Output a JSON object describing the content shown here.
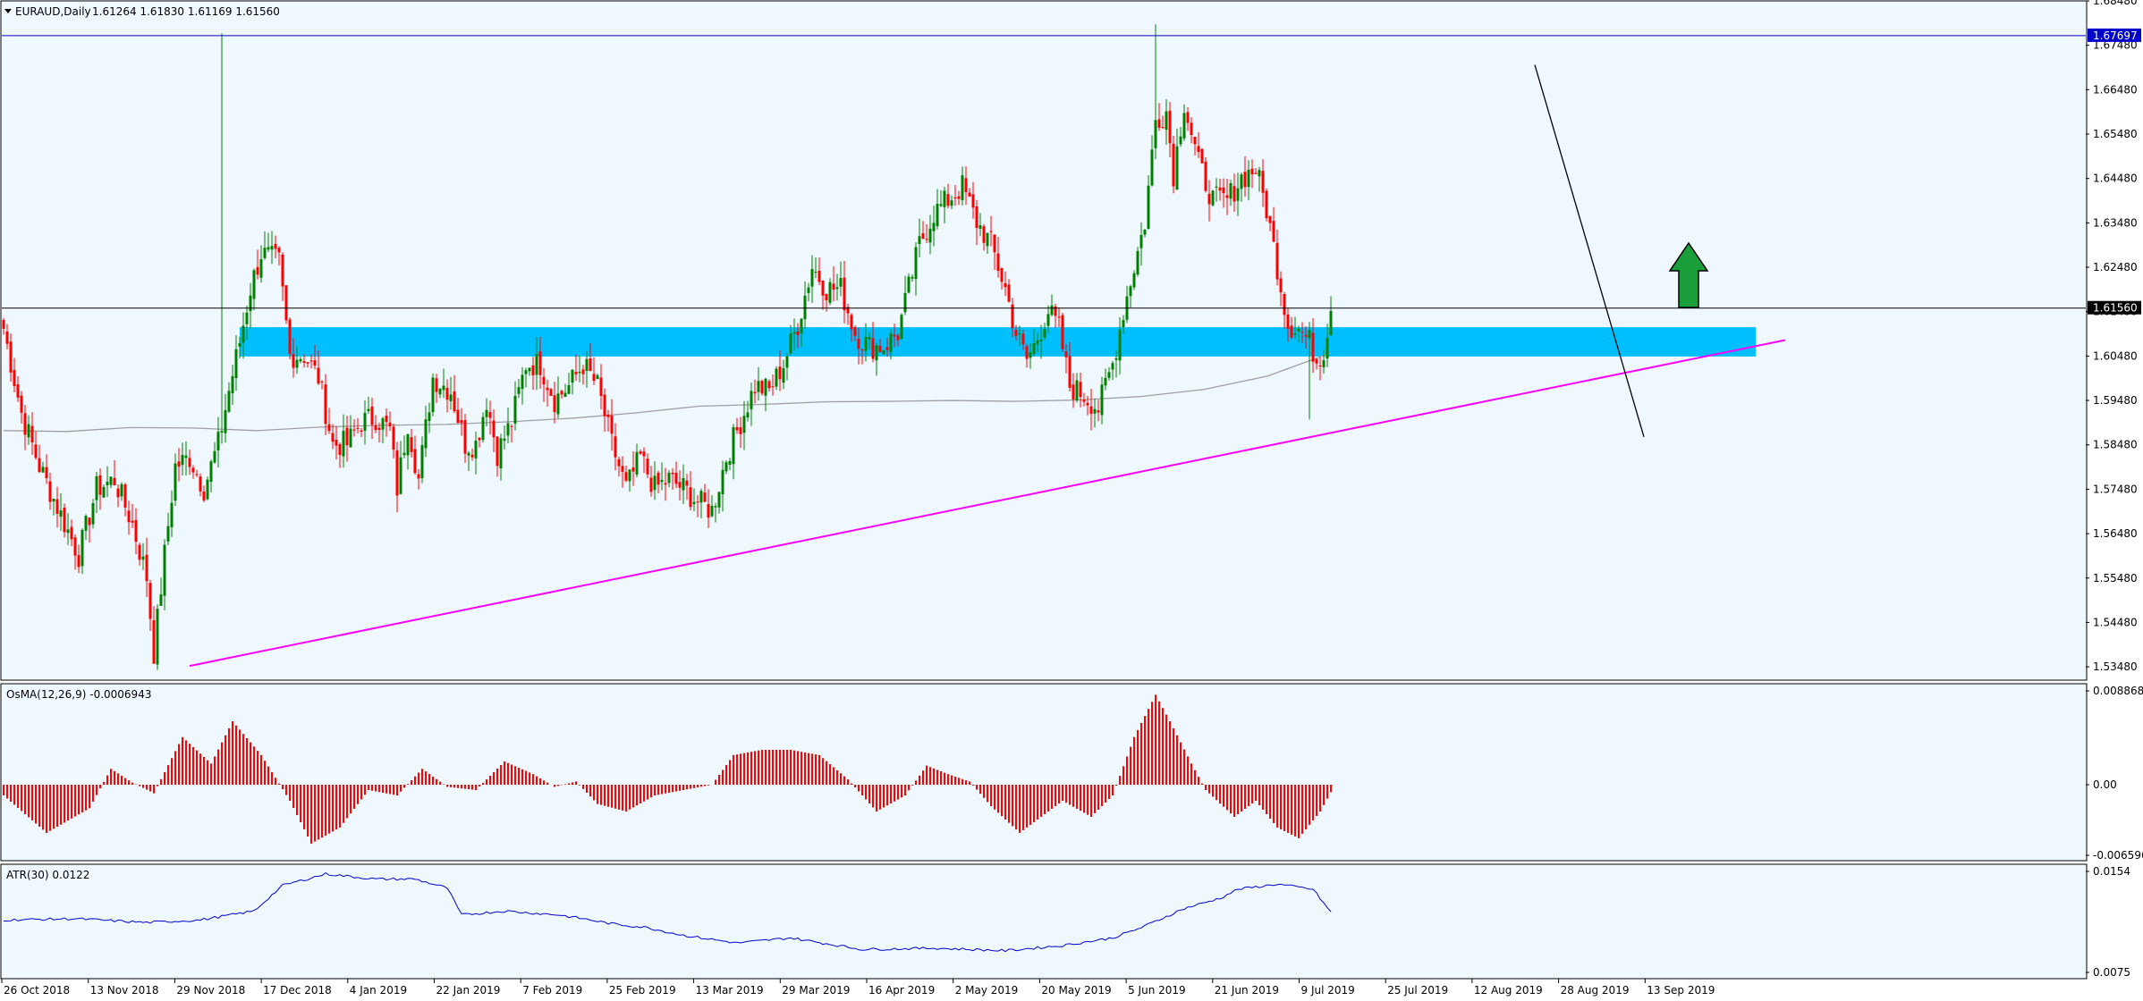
{
  "window": {
    "symbol_title": "EURAUD,Daily",
    "ohlc_text": "1.61264 1.61830 1.61169 1.61560"
  },
  "colors": {
    "background": "#f0f8ff",
    "bull_candle": "#008000",
    "bear_candle": "#ff0000",
    "osma_bar": "#ff0000",
    "atr_line": "#0000cc",
    "ma_line": "#a0a0a0",
    "trendline": "#ff00ff",
    "downtrend_line": "#000000",
    "resistance_line": "#0000cc",
    "support_zone": "#00bfff",
    "arrow": "#1a9e3a"
  },
  "price_axis": {
    "ticks": [
      "1.68480",
      "1.67480",
      "1.66480",
      "1.65480",
      "1.64480",
      "1.63480",
      "1.62480",
      "1.61480",
      "1.60480",
      "1.59480",
      "1.58480",
      "1.57480",
      "1.56480",
      "1.55480",
      "1.54480",
      "1.53480"
    ],
    "current_price_label": "1.61560",
    "resistance_label": "1.67697"
  },
  "osma_panel": {
    "label": "OsMA(12,26,9) -0.0006943",
    "ticks": [
      "0.0088685",
      "0.00",
      "-0.0065962"
    ]
  },
  "atr_panel": {
    "label": "ATR(30) 0.0122",
    "ticks": [
      "0.0154",
      "0.0075"
    ]
  },
  "time_axis": {
    "labels": [
      "26 Oct 2018",
      "13 Nov 2018",
      "29 Nov 2018",
      "17 Dec 2018",
      "4 Jan 2019",
      "22 Jan 2019",
      "7 Feb 2019",
      "25 Feb 2019",
      "13 Mar 2019",
      "29 Mar 2019",
      "16 Apr 2019",
      "2 May 2019",
      "20 May 2019",
      "5 Jun 2019",
      "21 Jun 2019",
      "9 Jul 2019",
      "25 Jul 2019",
      "12 Aug 2019",
      "28 Aug 2019",
      "13 Sep 2019"
    ]
  },
  "chart_data": [
    {
      "type": "candlestick",
      "title": "EURAUD,Daily",
      "x_start": "26 Oct 2018",
      "x_end": "18 Sep 2019",
      "ylim": [
        1.5318,
        1.6848
      ],
      "price_path": [
        [
          0,
          1.611
        ],
        [
          5,
          1.592
        ],
        [
          10,
          1.58
        ],
        [
          16,
          1.569
        ],
        [
          21,
          1.56
        ],
        [
          26,
          1.575
        ],
        [
          31,
          1.577
        ],
        [
          36,
          1.567
        ],
        [
          40,
          1.555
        ],
        [
          42,
          1.538
        ],
        [
          45,
          1.56
        ],
        [
          48,
          1.58
        ],
        [
          52,
          1.582
        ],
        [
          56,
          1.575
        ],
        [
          60,
          1.585
        ],
        [
          63,
          1.597
        ],
        [
          66,
          1.608
        ],
        [
          69,
          1.62
        ],
        [
          72,
          1.628
        ],
        [
          77,
          1.626
        ],
        [
          80,
          1.605
        ],
        [
          84,
          1.605
        ],
        [
          88,
          1.6
        ],
        [
          92,
          1.585
        ],
        [
          96,
          1.585
        ],
        [
          100,
          1.59
        ],
        [
          104,
          1.591
        ],
        [
          108,
          1.588
        ],
        [
          110,
          1.575
        ],
        [
          113,
          1.59
        ],
        [
          116,
          1.577
        ],
        [
          120,
          1.6
        ],
        [
          125,
          1.597
        ],
        [
          129,
          1.585
        ],
        [
          132,
          1.585
        ],
        [
          135,
          1.595
        ],
        [
          138,
          1.583
        ],
        [
          142,
          1.59
        ],
        [
          146,
          1.603
        ],
        [
          150,
          1.603
        ],
        [
          154,
          1.595
        ],
        [
          158,
          1.598
        ],
        [
          162,
          1.603
        ],
        [
          166,
          1.598
        ],
        [
          170,
          1.585
        ],
        [
          174,
          1.575
        ],
        [
          178,
          1.582
        ],
        [
          182,
          1.575
        ],
        [
          186,
          1.577
        ],
        [
          190,
          1.575
        ],
        [
          194,
          1.572
        ],
        [
          198,
          1.57
        ],
        [
          202,
          1.582
        ],
        [
          206,
          1.59
        ],
        [
          210,
          1.598
        ],
        [
          214,
          1.597
        ],
        [
          218,
          1.603
        ],
        [
          222,
          1.612
        ],
        [
          226,
          1.625
        ],
        [
          230,
          1.62
        ],
        [
          234,
          1.62
        ],
        [
          238,
          1.61
        ],
        [
          242,
          1.607
        ],
        [
          246,
          1.607
        ],
        [
          250,
          1.61
        ],
        [
          253,
          1.62
        ],
        [
          256,
          1.63
        ],
        [
          260,
          1.637
        ],
        [
          264,
          1.64
        ],
        [
          268,
          1.643
        ],
        [
          272,
          1.635
        ],
        [
          276,
          1.63
        ],
        [
          280,
          1.62
        ],
        [
          283,
          1.61
        ],
        [
          286,
          1.604
        ],
        [
          288,
          1.607
        ],
        [
          292,
          1.615
        ],
        [
          295,
          1.611
        ],
        [
          298,
          1.598
        ],
        [
          302,
          1.596
        ],
        [
          306,
          1.593
        ],
        [
          310,
          1.603
        ],
        [
          313,
          1.615
        ],
        [
          316,
          1.625
        ],
        [
          319,
          1.635
        ],
        [
          322,
          1.658
        ],
        [
          325,
          1.66
        ],
        [
          327,
          1.646
        ],
        [
          330,
          1.662
        ],
        [
          334,
          1.648
        ],
        [
          338,
          1.64
        ],
        [
          342,
          1.64
        ],
        [
          346,
          1.645
        ],
        [
          350,
          1.647
        ],
        [
          353,
          1.638
        ],
        [
          356,
          1.625
        ],
        [
          359,
          1.612
        ],
        [
          362,
          1.611
        ],
        [
          365,
          1.608
        ],
        [
          367,
          1.604
        ],
        [
          369,
          1.606
        ],
        [
          371,
          1.616
        ]
      ]
    },
    {
      "type": "line",
      "title": "",
      "values": [
        1.588,
        1.5878,
        1.5887,
        1.5886,
        1.588,
        1.5888,
        1.5892,
        1.5894,
        1.59,
        1.5908,
        1.592,
        1.5935,
        1.5939,
        1.5945,
        1.5946,
        1.5948,
        1.5946,
        1.5949,
        1.5957,
        1.5973,
        1.6003,
        1.6055
      ]
    },
    {
      "type": "bar",
      "title": "OsMA(12,26,9) -0.0006943",
      "ylim": [
        -0.0065962,
        0.0088685
      ],
      "osma_path": [
        [
          0,
          -0.001
        ],
        [
          12,
          -0.0045
        ],
        [
          24,
          -0.0022
        ],
        [
          30,
          0.0015
        ],
        [
          36,
          0.0002
        ],
        [
          42,
          -0.0008
        ],
        [
          50,
          0.0045
        ],
        [
          58,
          0.002
        ],
        [
          64,
          0.006
        ],
        [
          72,
          0.0028
        ],
        [
          80,
          -0.0015
        ],
        [
          86,
          -0.0055
        ],
        [
          94,
          -0.004
        ],
        [
          102,
          -0.0005
        ],
        [
          110,
          -0.001
        ],
        [
          117,
          0.0015
        ],
        [
          124,
          -0.0002
        ],
        [
          132,
          -0.0005
        ],
        [
          140,
          0.0022
        ],
        [
          148,
          0.001
        ],
        [
          154,
          -0.0002
        ],
        [
          160,
          0.0003
        ],
        [
          166,
          -0.0018
        ],
        [
          174,
          -0.0025
        ],
        [
          182,
          -0.001
        ],
        [
          190,
          -0.0005
        ],
        [
          198,
          0.0
        ],
        [
          204,
          0.0028
        ],
        [
          212,
          0.0033
        ],
        [
          220,
          0.0033
        ],
        [
          228,
          0.0028
        ],
        [
          236,
          0.0005
        ],
        [
          244,
          -0.0025
        ],
        [
          252,
          -0.001
        ],
        [
          258,
          0.0018
        ],
        [
          264,
          0.001
        ],
        [
          270,
          0.0003
        ],
        [
          276,
          -0.002
        ],
        [
          284,
          -0.0045
        ],
        [
          290,
          -0.003
        ],
        [
          296,
          -0.0015
        ],
        [
          304,
          -0.003
        ],
        [
          310,
          -0.001
        ],
        [
          316,
          0.0045
        ],
        [
          322,
          0.0085
        ],
        [
          326,
          0.006
        ],
        [
          332,
          0.002
        ],
        [
          336,
          -0.0005
        ],
        [
          344,
          -0.003
        ],
        [
          350,
          -0.0015
        ],
        [
          356,
          -0.004
        ],
        [
          362,
          -0.005
        ],
        [
          368,
          -0.0025
        ],
        [
          371,
          -0.0007
        ]
      ]
    },
    {
      "type": "line",
      "title": "ATR(30) 0.0122",
      "ylim": [
        0.0075,
        0.0154
      ],
      "atr_path": [
        [
          0,
          0.0116
        ],
        [
          20,
          0.0117
        ],
        [
          40,
          0.0114
        ],
        [
          55,
          0.0116
        ],
        [
          70,
          0.0123
        ],
        [
          78,
          0.0143
        ],
        [
          90,
          0.0152
        ],
        [
          104,
          0.0148
        ],
        [
          115,
          0.0148
        ],
        [
          124,
          0.0141
        ],
        [
          128,
          0.012
        ],
        [
          140,
          0.0123
        ],
        [
          155,
          0.012
        ],
        [
          162,
          0.0117
        ],
        [
          170,
          0.0113
        ],
        [
          180,
          0.011
        ],
        [
          190,
          0.0104
        ],
        [
          205,
          0.0098
        ],
        [
          220,
          0.0102
        ],
        [
          240,
          0.0093
        ],
        [
          260,
          0.0094
        ],
        [
          280,
          0.0092
        ],
        [
          296,
          0.0096
        ],
        [
          310,
          0.0102
        ],
        [
          318,
          0.011
        ],
        [
          330,
          0.0125
        ],
        [
          340,
          0.0133
        ],
        [
          345,
          0.014
        ],
        [
          356,
          0.0144
        ],
        [
          366,
          0.014
        ],
        [
          371,
          0.0122
        ]
      ]
    }
  ]
}
